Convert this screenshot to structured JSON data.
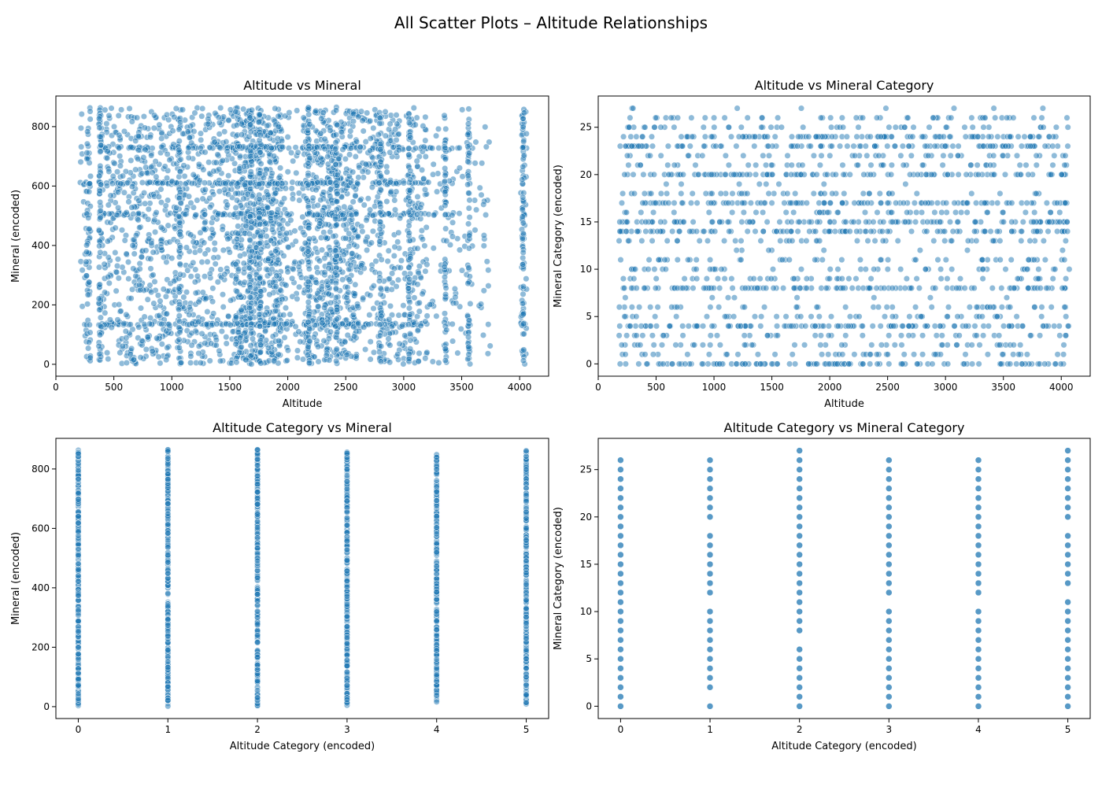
{
  "figure": {
    "suptitle": "All Scatter Plots – Altitude Relationships"
  },
  "chart_data": [
    {
      "type": "scatter",
      "title": "Altitude vs Mineral",
      "xlabel": "Altitude",
      "ylabel": "Mineral (encoded)",
      "xlim": [
        0,
        4250
      ],
      "ylim": [
        -40,
        903
      ],
      "xticks": [
        0,
        500,
        1000,
        1500,
        2000,
        2500,
        3000,
        3500,
        4000
      ],
      "yticks": [
        0,
        200,
        400,
        600,
        800
      ],
      "point_color": "#1f77b4",
      "columns": [
        {
          "x_range": [
            200,
            260
          ],
          "density": 6
        },
        {
          "x_range": [
            260,
            300
          ],
          "density": 25
        },
        {
          "x_range": [
            370,
            1000
          ],
          "density": 180
        },
        {
          "x_range": [
            1000,
            1550
          ],
          "density": 160
        },
        {
          "x_range": [
            1550,
            1950
          ],
          "density": 260
        },
        {
          "x_range": [
            1950,
            2150
          ],
          "density": 40
        },
        {
          "x_range": [
            2150,
            2600
          ],
          "density": 220
        },
        {
          "x_range": [
            2600,
            3200
          ],
          "density": 150
        },
        {
          "x_range": [
            3200,
            3750
          ],
          "density": 40
        },
        {
          "x_range": [
            4010,
            4060
          ],
          "density": 16
        }
      ],
      "dense_rows": [
        135,
        505,
        610,
        730
      ]
    },
    {
      "type": "scatter",
      "title": "Altitude vs Mineral Category",
      "xlabel": "Altitude",
      "ylabel": "Mineral Category (encoded)",
      "xlim": [
        0,
        4250
      ],
      "ylim": [
        -1.3,
        28.3
      ],
      "xticks": [
        0,
        500,
        1000,
        1500,
        2000,
        2500,
        3000,
        3500,
        4000
      ],
      "yticks": [
        0,
        5,
        10,
        15,
        20,
        25
      ],
      "point_color": "#1f77b4",
      "x_range": [
        180,
        4070
      ],
      "dense_levels": [
        0,
        4,
        8,
        14,
        15,
        17,
        20,
        23,
        24
      ],
      "medium_levels": [
        1,
        2,
        3,
        5,
        6,
        9,
        10,
        11,
        13,
        16,
        18,
        21,
        22,
        25,
        26
      ],
      "sparse_levels": [
        7,
        12,
        19,
        27
      ]
    },
    {
      "type": "scatter",
      "title": "Altitude Category vs Mineral",
      "xlabel": "Altitude Category (encoded)",
      "ylabel": "Mineral (encoded)",
      "xlim": [
        -0.25,
        5.25
      ],
      "ylim": [
        -40,
        903
      ],
      "xticks": [
        0,
        1,
        2,
        3,
        4,
        5
      ],
      "yticks": [
        0,
        200,
        400,
        600,
        800
      ],
      "point_color": "#1f77b4",
      "x": [
        0,
        1,
        2,
        3,
        4,
        5
      ],
      "y_range": [
        0,
        865
      ]
    },
    {
      "type": "scatter",
      "title": "Altitude Category vs Mineral Category",
      "xlabel": "Altitude Category (encoded)",
      "ylabel": "Mineral Category (encoded)",
      "xlim": [
        -0.25,
        5.25
      ],
      "ylim": [
        -1.3,
        28.3
      ],
      "xticks": [
        0,
        1,
        2,
        3,
        4,
        5
      ],
      "yticks": [
        0,
        5,
        10,
        15,
        20,
        25
      ],
      "point_color": "#1f77b4",
      "series": [
        {
          "x": 0,
          "y": [
            0,
            1,
            2,
            3,
            4,
            5,
            6,
            7,
            8,
            9,
            10,
            11,
            12,
            13,
            14,
            15,
            16,
            17,
            18,
            19,
            20,
            21,
            22,
            23,
            24,
            25,
            26
          ]
        },
        {
          "x": 1,
          "y": [
            0,
            2,
            3,
            4,
            5,
            6,
            7,
            8,
            9,
            10,
            12,
            13,
            14,
            15,
            16,
            17,
            18,
            20,
            21,
            22,
            23,
            24,
            25,
            26
          ]
        },
        {
          "x": 2,
          "y": [
            0,
            1,
            2,
            3,
            4,
            5,
            6,
            8,
            9,
            10,
            11,
            12,
            13,
            14,
            15,
            16,
            17,
            18,
            19,
            20,
            21,
            22,
            23,
            24,
            25,
            26,
            27
          ]
        },
        {
          "x": 3,
          "y": [
            0,
            1,
            2,
            3,
            4,
            5,
            6,
            7,
            8,
            9,
            10,
            12,
            13,
            14,
            15,
            16,
            17,
            18,
            19,
            20,
            21,
            22,
            23,
            24,
            25,
            26
          ]
        },
        {
          "x": 4,
          "y": [
            0,
            1,
            2,
            3,
            4,
            5,
            6,
            7,
            8,
            9,
            10,
            12,
            13,
            14,
            15,
            16,
            17,
            18,
            19,
            20,
            21,
            22,
            23,
            24,
            25,
            26
          ]
        },
        {
          "x": 5,
          "y": [
            0,
            1,
            2,
            3,
            4,
            5,
            6,
            7,
            8,
            9,
            10,
            11,
            13,
            14,
            15,
            16,
            17,
            18,
            20,
            21,
            22,
            23,
            24,
            25,
            26,
            27
          ]
        }
      ]
    }
  ]
}
